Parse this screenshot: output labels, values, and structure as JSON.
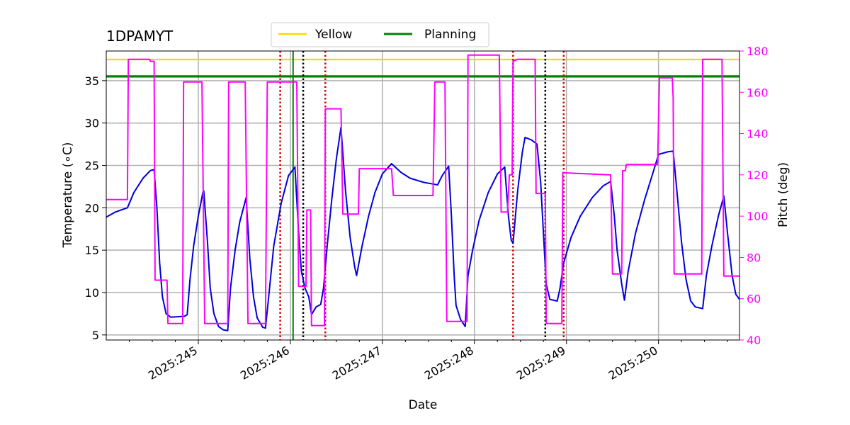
{
  "chart_data": {
    "type": "line",
    "title": "1DPAMYT",
    "xlabel": "Date",
    "ylabel": "Temperature ($^\\circ$C)",
    "ylabel_display": "Temperature (∘C)",
    "y2label": "Pitch (deg)",
    "xlim": [
      244.0,
      250.88
    ],
    "ylim": [
      4.4,
      38.5
    ],
    "y2lim": [
      40,
      180
    ],
    "x_ticks": [
      245,
      246,
      247,
      248,
      249,
      250
    ],
    "x_tick_labels": [
      "2025:245",
      "2025:246",
      "2025:247",
      "2025:248",
      "2025:249",
      "2025:250"
    ],
    "y_ticks": [
      5,
      10,
      15,
      20,
      25,
      30,
      35
    ],
    "y_tick_labels": [
      "5",
      "10",
      "15",
      "20",
      "25",
      "30",
      "35"
    ],
    "y2_ticks": [
      40,
      60,
      80,
      100,
      120,
      140,
      160,
      180
    ],
    "y2_tick_labels": [
      "40",
      "60",
      "80",
      "100",
      "120",
      "140",
      "160",
      "180"
    ],
    "grid": true,
    "legend_position": "top-center",
    "colors": {
      "temperature": "#0000dd",
      "pitch": "#ff00ff",
      "yellow": "#ffd700",
      "planning": "#008000",
      "red_marker": "#dd0000",
      "black_marker": "#000000",
      "pitch_axis": "#ff00ff"
    },
    "limits": [
      {
        "name": "Yellow",
        "value": 37.5
      },
      {
        "name": "Planning",
        "value": 35.5
      }
    ],
    "legend": [
      "Yellow",
      "Planning"
    ],
    "red_markers": [
      245.89,
      246.38,
      248.42,
      248.97
    ],
    "black_markers": [
      246.14,
      248.77
    ],
    "green_marker": 246.03,
    "series": [
      {
        "name": "Temperature",
        "axis": "left",
        "points": [
          [
            244.0,
            18.9
          ],
          [
            244.1,
            19.5
          ],
          [
            244.23,
            20.0
          ],
          [
            244.3,
            21.8
          ],
          [
            244.4,
            23.5
          ],
          [
            244.48,
            24.4
          ],
          [
            244.52,
            24.5
          ],
          [
            244.55,
            20.0
          ],
          [
            244.58,
            13.5
          ],
          [
            244.61,
            9.5
          ],
          [
            244.65,
            7.5
          ],
          [
            244.7,
            7.1
          ],
          [
            244.85,
            7.2
          ],
          [
            244.88,
            7.4
          ],
          [
            244.91,
            11.5
          ],
          [
            244.95,
            15.5
          ],
          [
            245.0,
            19.0
          ],
          [
            245.05,
            21.8
          ],
          [
            245.06,
            22.0
          ],
          [
            245.1,
            16.0
          ],
          [
            245.13,
            10.5
          ],
          [
            245.17,
            7.5
          ],
          [
            245.22,
            6.0
          ],
          [
            245.27,
            5.6
          ],
          [
            245.32,
            5.5
          ],
          [
            245.35,
            10.5
          ],
          [
            245.4,
            15.0
          ],
          [
            245.45,
            18.3
          ],
          [
            245.52,
            21.2
          ],
          [
            245.56,
            14.0
          ],
          [
            245.6,
            9.5
          ],
          [
            245.64,
            7.0
          ],
          [
            245.7,
            5.9
          ],
          [
            245.73,
            5.8
          ],
          [
            245.76,
            9.0
          ],
          [
            245.82,
            15.5
          ],
          [
            245.9,
            20.5
          ],
          [
            245.98,
            23.8
          ],
          [
            246.05,
            24.8
          ],
          [
            246.09,
            17.0
          ],
          [
            246.12,
            12.5
          ],
          [
            246.16,
            10.5
          ],
          [
            246.2,
            9.5
          ],
          [
            246.23,
            7.4
          ],
          [
            246.28,
            8.3
          ],
          [
            246.33,
            8.6
          ],
          [
            246.36,
            10.5
          ],
          [
            246.4,
            15.5
          ],
          [
            246.45,
            21.0
          ],
          [
            246.5,
            25.8
          ],
          [
            246.55,
            29.5
          ],
          [
            246.6,
            22.0
          ],
          [
            246.65,
            16.5
          ],
          [
            246.7,
            13.0
          ],
          [
            246.72,
            12.0
          ],
          [
            246.78,
            15.5
          ],
          [
            246.85,
            19.0
          ],
          [
            246.92,
            21.8
          ],
          [
            247.0,
            24.0
          ],
          [
            247.1,
            25.2
          ],
          [
            247.2,
            24.2
          ],
          [
            247.3,
            23.5
          ],
          [
            247.45,
            23.0
          ],
          [
            247.55,
            22.8
          ],
          [
            247.6,
            22.7
          ],
          [
            247.65,
            23.8
          ],
          [
            247.72,
            24.9
          ],
          [
            247.75,
            19.0
          ],
          [
            247.78,
            12.0
          ],
          [
            247.8,
            8.5
          ],
          [
            247.85,
            6.8
          ],
          [
            247.9,
            6.0
          ],
          [
            247.93,
            12.0
          ],
          [
            247.98,
            15.0
          ],
          [
            248.05,
            18.5
          ],
          [
            248.15,
            21.8
          ],
          [
            248.25,
            24.0
          ],
          [
            248.33,
            24.8
          ],
          [
            248.37,
            19.0
          ],
          [
            248.4,
            16.2
          ],
          [
            248.42,
            15.8
          ],
          [
            248.47,
            22.0
          ],
          [
            248.52,
            26.5
          ],
          [
            248.55,
            28.3
          ],
          [
            248.62,
            28.0
          ],
          [
            248.68,
            27.5
          ],
          [
            248.72,
            23.0
          ],
          [
            248.75,
            17.0
          ],
          [
            248.78,
            11.0
          ],
          [
            248.82,
            9.2
          ],
          [
            248.9,
            9.0
          ],
          [
            248.93,
            10.5
          ],
          [
            248.97,
            13.5
          ],
          [
            249.05,
            16.5
          ],
          [
            249.15,
            19.0
          ],
          [
            249.28,
            21.2
          ],
          [
            249.4,
            22.6
          ],
          [
            249.48,
            23.1
          ],
          [
            249.52,
            19.0
          ],
          [
            249.55,
            15.0
          ],
          [
            249.6,
            11.0
          ],
          [
            249.63,
            9.1
          ],
          [
            249.67,
            12.5
          ],
          [
            249.75,
            17.0
          ],
          [
            249.85,
            21.0
          ],
          [
            249.95,
            24.5
          ],
          [
            250.0,
            26.3
          ],
          [
            250.1,
            26.6
          ],
          [
            250.16,
            26.7
          ],
          [
            250.2,
            22.0
          ],
          [
            250.25,
            16.0
          ],
          [
            250.3,
            11.5
          ],
          [
            250.35,
            9.0
          ],
          [
            250.4,
            8.3
          ],
          [
            250.48,
            8.1
          ],
          [
            250.52,
            12.0
          ],
          [
            250.58,
            15.5
          ],
          [
            250.65,
            19.0
          ],
          [
            250.71,
            21.4
          ],
          [
            250.75,
            17.0
          ],
          [
            250.8,
            12.0
          ],
          [
            250.84,
            9.8
          ],
          [
            250.88,
            9.2
          ]
        ]
      },
      {
        "name": "Pitch",
        "axis": "right",
        "points": [
          [
            244.0,
            108
          ],
          [
            244.23,
            108
          ],
          [
            244.24,
            176
          ],
          [
            244.26,
            176
          ],
          [
            244.47,
            176
          ],
          [
            244.48,
            175
          ],
          [
            244.52,
            175
          ],
          [
            244.53,
            69
          ],
          [
            244.66,
            69
          ],
          [
            244.67,
            48
          ],
          [
            244.83,
            48
          ],
          [
            244.84,
            165
          ],
          [
            245.04,
            165
          ],
          [
            245.07,
            48
          ],
          [
            245.32,
            48
          ],
          [
            245.33,
            165
          ],
          [
            245.51,
            165
          ],
          [
            245.54,
            48
          ],
          [
            245.73,
            48
          ],
          [
            245.75,
            165
          ],
          [
            246.07,
            165
          ],
          [
            246.09,
            66
          ],
          [
            246.17,
            66
          ],
          [
            246.18,
            103
          ],
          [
            246.22,
            103
          ],
          [
            246.23,
            47
          ],
          [
            246.37,
            47
          ],
          [
            246.38,
            152
          ],
          [
            246.55,
            152
          ],
          [
            246.57,
            101
          ],
          [
            246.74,
            101
          ],
          [
            246.75,
            123
          ],
          [
            247.1,
            123
          ],
          [
            247.12,
            110
          ],
          [
            247.55,
            110
          ],
          [
            247.57,
            165
          ],
          [
            247.68,
            165
          ],
          [
            247.7,
            49
          ],
          [
            247.92,
            49
          ],
          [
            247.93,
            178
          ],
          [
            248.27,
            178
          ],
          [
            248.29,
            102
          ],
          [
            248.36,
            102
          ],
          [
            248.38,
            120
          ],
          [
            248.41,
            120
          ],
          [
            248.42,
            175
          ],
          [
            248.47,
            176
          ],
          [
            248.66,
            176
          ],
          [
            248.67,
            111
          ],
          [
            248.77,
            111
          ],
          [
            248.78,
            48
          ],
          [
            248.95,
            48
          ],
          [
            248.96,
            121
          ],
          [
            249.48,
            120
          ],
          [
            249.5,
            72
          ],
          [
            249.6,
            72
          ],
          [
            249.61,
            122
          ],
          [
            249.64,
            122
          ],
          [
            249.65,
            125
          ],
          [
            249.99,
            125
          ],
          [
            250.01,
            167
          ],
          [
            250.15,
            167
          ],
          [
            250.16,
            157
          ],
          [
            250.17,
            72
          ],
          [
            250.47,
            72
          ],
          [
            250.48,
            176
          ],
          [
            250.69,
            176
          ],
          [
            250.71,
            71
          ],
          [
            250.88,
            71
          ]
        ]
      }
    ]
  }
}
